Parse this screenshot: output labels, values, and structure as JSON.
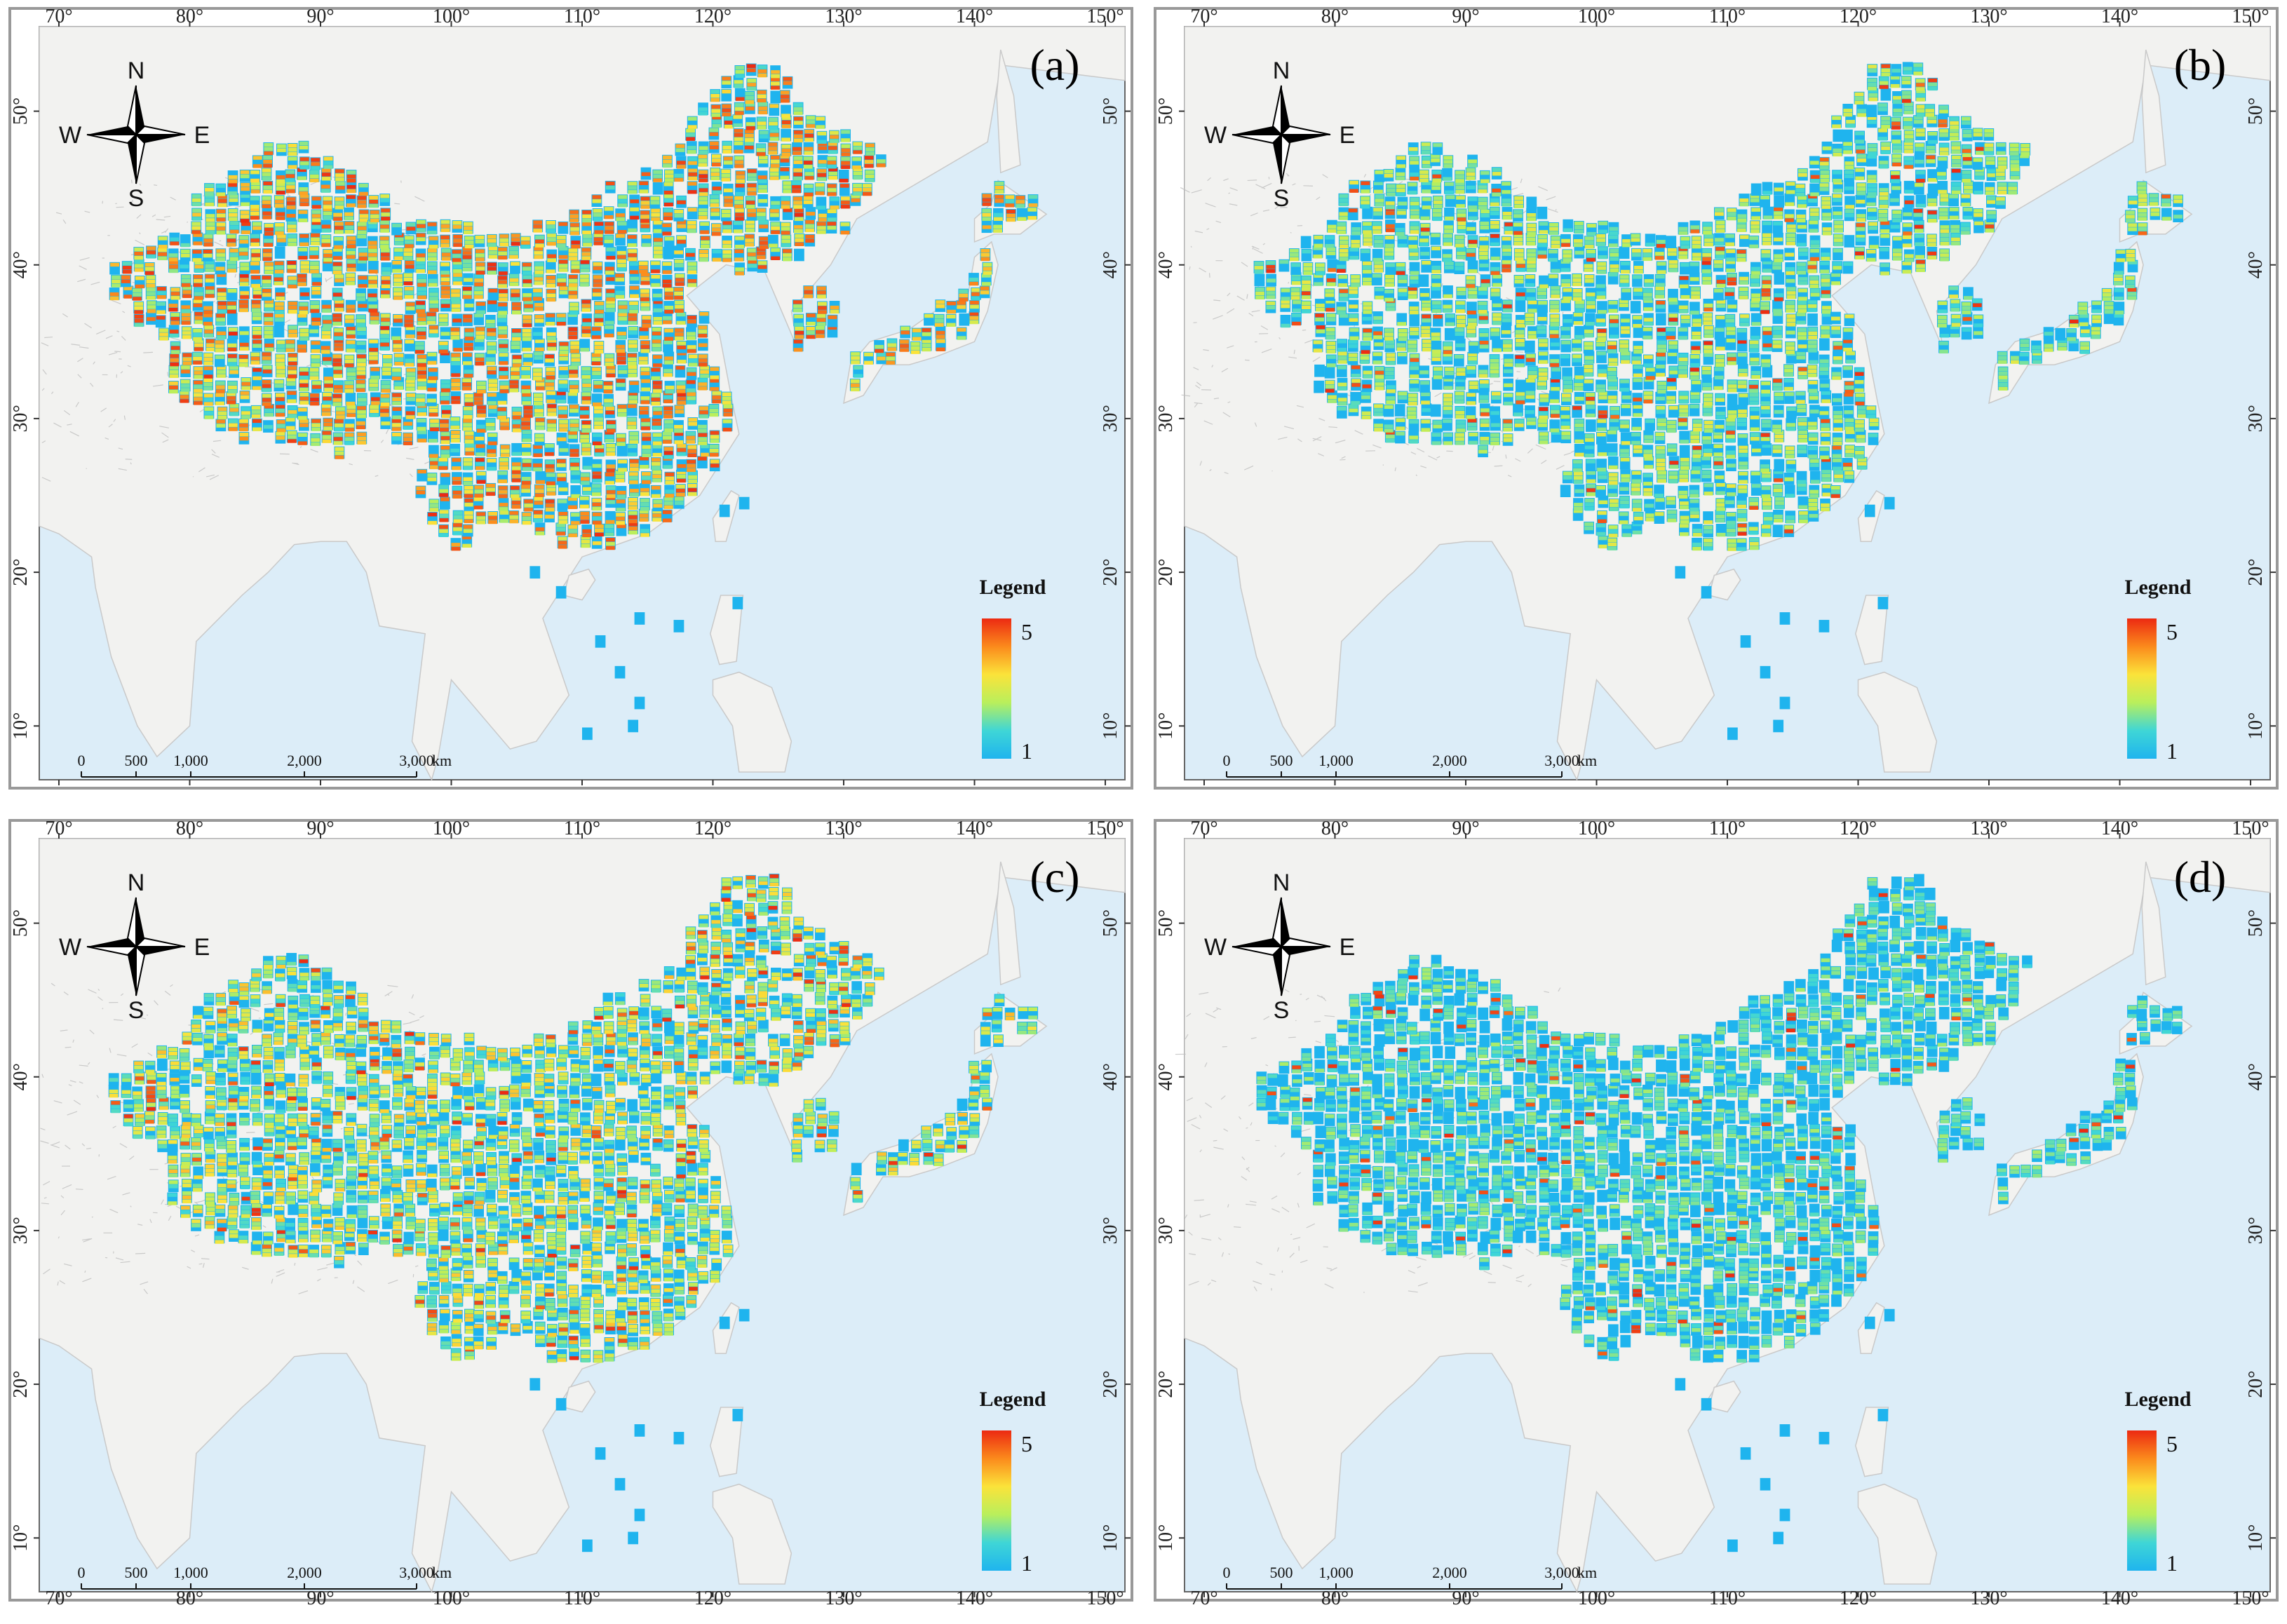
{
  "panels": [
    {
      "id": "a",
      "label": "(a)",
      "intensity": 0.95,
      "seed": 11
    },
    {
      "id": "b",
      "label": "(b)",
      "intensity": 0.55,
      "seed": 23
    },
    {
      "id": "c",
      "label": "(c)",
      "intensity": 0.7,
      "seed": 37
    },
    {
      "id": "d",
      "label": "(d)",
      "intensity": 0.38,
      "seed": 51
    }
  ],
  "lon_ticks": [
    "70°",
    "80°",
    "90°",
    "100°",
    "110°",
    "120°",
    "130°",
    "140°",
    "150°"
  ],
  "lat_ticks": [
    "10°",
    "20°",
    "30°",
    "40°",
    "50°"
  ],
  "legend": {
    "title": "Legend",
    "max_label": "5",
    "min_label": "1",
    "colors": [
      "#1fb4ee",
      "#3fd6d6",
      "#b9ef5c",
      "#fbe33a",
      "#fb8a1c",
      "#ec2a12"
    ]
  },
  "scale_bar": {
    "labels": [
      "0",
      "500",
      "1,000",
      "2,000",
      "3,000"
    ],
    "unit": "km"
  },
  "compass": {
    "n": "N",
    "s": "S",
    "e": "E",
    "w": "W"
  },
  "colors": {
    "ocean": "#dcedf8",
    "land": "#f2f2f0",
    "frame": "#999999",
    "grid_base": "#1fb4ee"
  }
}
